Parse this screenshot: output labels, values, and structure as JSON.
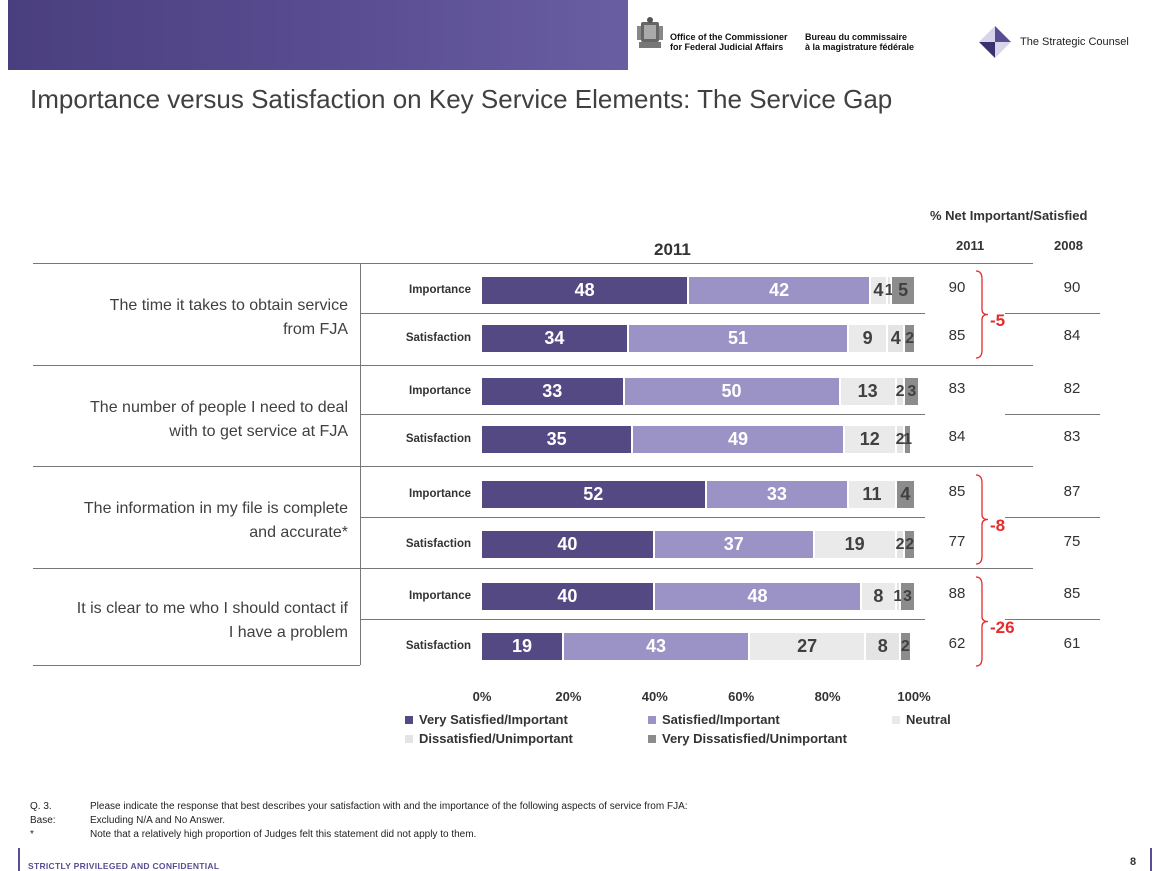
{
  "header": {
    "agency_en_line1": "Office of the Commissioner",
    "agency_en_line2": "for Federal Judicial Affairs",
    "agency_fr_line1": "Bureau du commissaire",
    "agency_fr_line2": "à la magistrature fédérale",
    "consultancy": "The Strategic Counsel"
  },
  "page_title": "Importance versus Satisfaction on Key Service Elements:  The Service Gap",
  "table_headers": {
    "year_label": "2011",
    "net_title": "% Net Important/Satisfied",
    "col_2011": "2011",
    "col_2008": "2008"
  },
  "chart_data": {
    "type": "bar",
    "orientation": "horizontal",
    "stacked": true,
    "percent_axis": true,
    "xlim": [
      0,
      100
    ],
    "xticks": [
      "0%",
      "20%",
      "40%",
      "60%",
      "80%",
      "100%"
    ],
    "colors": [
      "#544983",
      "#9b92c6",
      "#eaeaea",
      "#e4e4e4",
      "#8c8c8c"
    ],
    "legend": [
      "Very Satisfied/Important",
      "Satisfied/Important",
      "Neutral",
      "Dissatisfied/Unimportant",
      "Very Dissatisfied/Unimportant"
    ],
    "groups": [
      {
        "statement": [
          "The time it takes to obtain service",
          "from FJA"
        ],
        "gap": "-5",
        "rows": [
          {
            "measure": "Importance",
            "values": [
              48,
              42,
              4,
              1,
              5
            ],
            "net_2011": "90",
            "net_2008": "90"
          },
          {
            "measure": "Satisfaction",
            "values": [
              34,
              51,
              9,
              4,
              2
            ],
            "net_2011": "85",
            "net_2008": "84"
          }
        ]
      },
      {
        "statement": [
          "The number of people I need to deal",
          "with to get service at FJA"
        ],
        "gap": "",
        "rows": [
          {
            "measure": "Importance",
            "values": [
              33,
              50,
              13,
              2,
              3
            ],
            "net_2011": "83",
            "net_2008": "82"
          },
          {
            "measure": "Satisfaction",
            "values": [
              35,
              49,
              12,
              2,
              1
            ],
            "net_2011": "84",
            "net_2008": "83"
          }
        ]
      },
      {
        "statement": [
          "The information in my file is complete",
          "and accurate*"
        ],
        "gap": "-8",
        "rows": [
          {
            "measure": "Importance",
            "values": [
              52,
              33,
              11,
              0,
              4
            ],
            "net_2011": "85",
            "net_2008": "87"
          },
          {
            "measure": "Satisfaction",
            "values": [
              40,
              37,
              19,
              2,
              2
            ],
            "net_2011": "77",
            "net_2008": "75"
          }
        ]
      },
      {
        "statement": [
          "It is clear to me who I should contact if",
          "I have a problem"
        ],
        "gap": "-26",
        "rows": [
          {
            "measure": "Importance",
            "values": [
              40,
              48,
              8,
              1,
              3
            ],
            "net_2011": "88",
            "net_2008": "85"
          },
          {
            "measure": "Satisfaction",
            "values": [
              19,
              43,
              27,
              8,
              2
            ],
            "net_2011": "62",
            "net_2008": "61"
          }
        ]
      }
    ]
  },
  "footnotes": {
    "q_label": "Q. 3.",
    "q_text": "Please indicate the response that best describes your satisfaction with and the importance of the following aspects of service from FJA:",
    "base_label": "Base:",
    "base_text": "Excluding N/A and No Answer.",
    "star_label": "*",
    "star_text": "Note that a relatively high proportion of Judges felt this statement did not apply to them."
  },
  "confidential": "STRICTLY PRIVILEGED AND CONFIDENTIAL",
  "page_number": "8"
}
